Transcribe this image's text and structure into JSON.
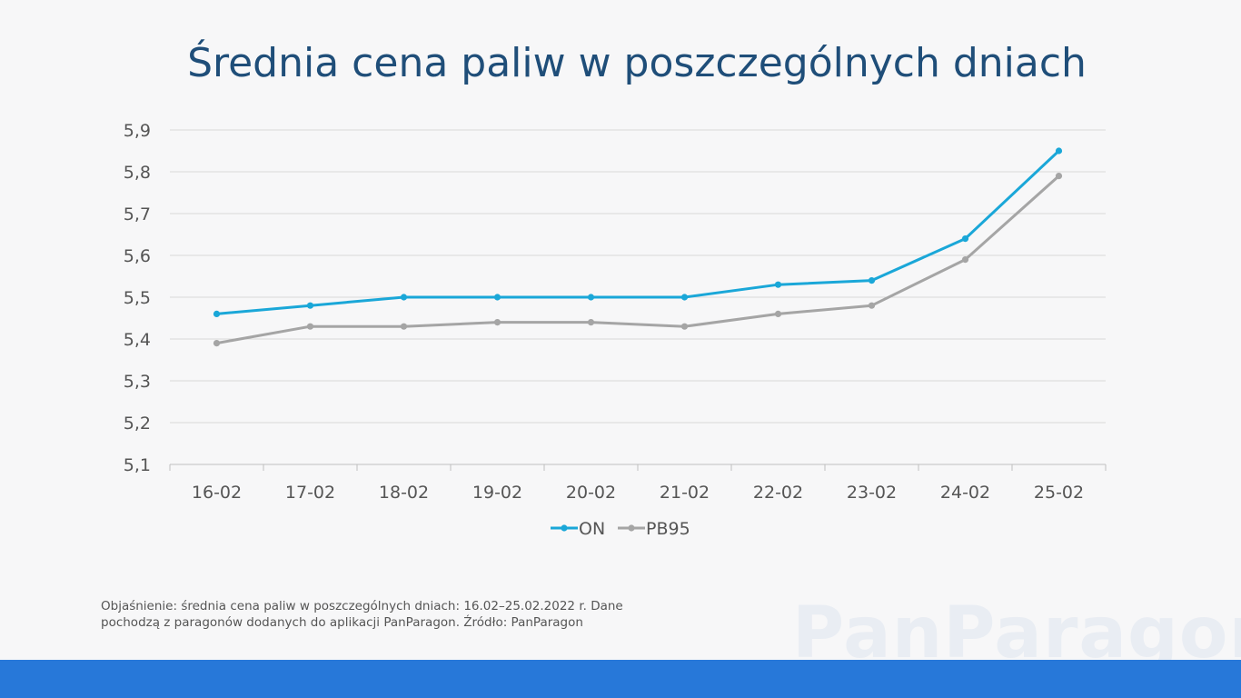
{
  "title": "Średnia cena paliw w poszczególnych dniach",
  "chart_data": {
    "type": "line",
    "title": "Średnia cena paliw w poszczególnych dniach",
    "categories": [
      "16-02",
      "17-02",
      "18-02",
      "19-02",
      "20-02",
      "21-02",
      "22-02",
      "23-02",
      "24-02",
      "25-02"
    ],
    "series": [
      {
        "name": "ON",
        "color": "#1aa7d8",
        "values": [
          5.46,
          5.48,
          5.5,
          5.5,
          5.5,
          5.5,
          5.53,
          5.54,
          5.64,
          5.85
        ]
      },
      {
        "name": "PB95",
        "color": "#a5a5a5",
        "values": [
          5.39,
          5.43,
          5.43,
          5.44,
          5.44,
          5.43,
          5.46,
          5.48,
          5.59,
          5.79
        ]
      }
    ],
    "ylim": [
      5.1,
      5.9
    ],
    "yticks": [
      "5,1",
      "5,2",
      "5,3",
      "5,4",
      "5,5",
      "5,6",
      "5,7",
      "5,8",
      "5,9"
    ],
    "grid": true,
    "legend": "bottom-center",
    "xlabel": "",
    "ylabel": ""
  },
  "note": "Objaśnienie: średnia cena paliw w poszczególnych dniach: 16.02–25.02.2022 r. Dane pochodzą z paragonów dodanych do aplikacji PanParagon. Źródło: PanParagon",
  "watermark": "PanParagon",
  "colors": {
    "title": "#1f4e79",
    "bottom_bar": "#2778d9",
    "grid": "#d9d9d9"
  }
}
